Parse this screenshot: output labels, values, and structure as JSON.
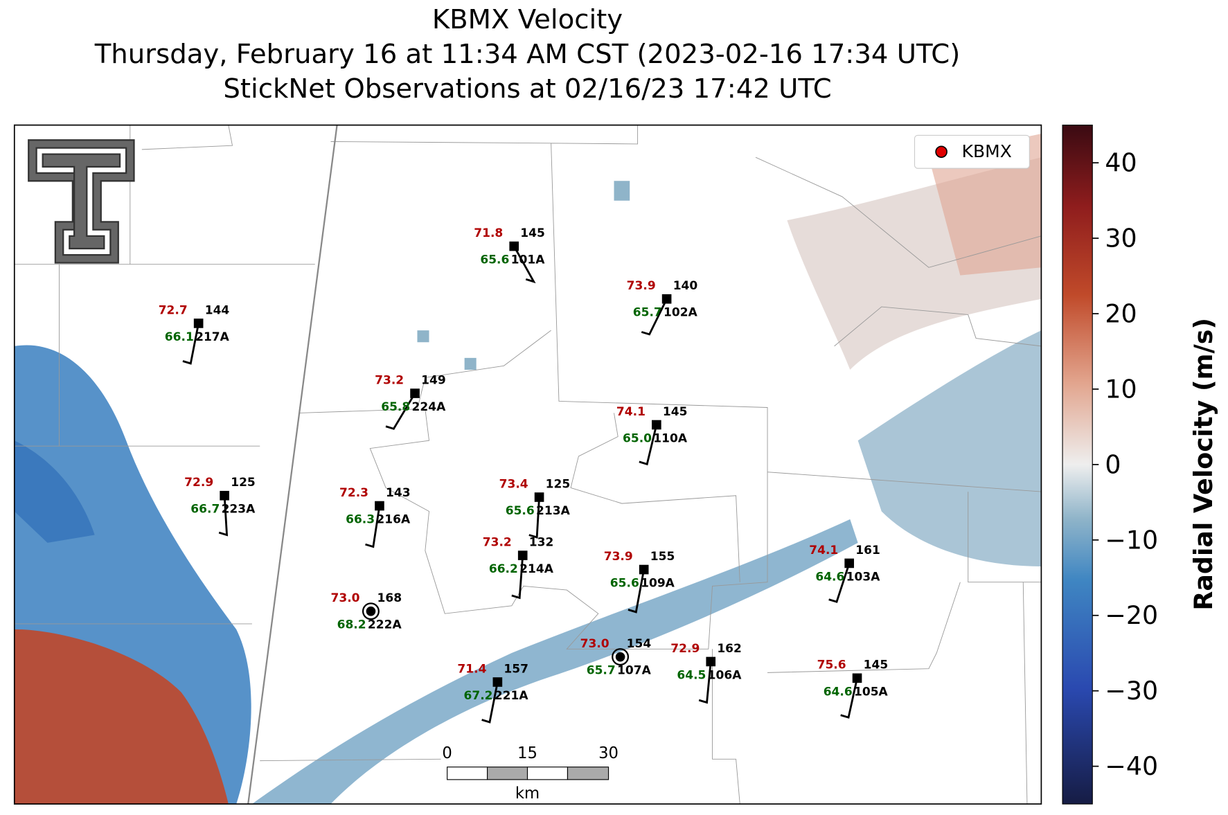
{
  "header": {
    "title": "KBMX Velocity",
    "subtitle": "Thursday, February 16 at 11:34 AM CST (2023-02-16 17:34 UTC)",
    "observations": "StickNet Observations at 02/16/23 17:42 UTC"
  },
  "legend": {
    "label": "KBMX",
    "color": "#e00000"
  },
  "scale_bar": {
    "ticks": [
      "0",
      "15",
      "30"
    ],
    "unit": "km"
  },
  "colorbar": {
    "label": "Radial Velocity (m/s)",
    "lim": [
      -45,
      45
    ],
    "ticks": [
      {
        "value": -40,
        "label": "−40"
      },
      {
        "value": -30,
        "label": "−30"
      },
      {
        "value": -20,
        "label": "−20"
      },
      {
        "value": -10,
        "label": "−10"
      },
      0,
      10,
      20,
      30,
      40
    ]
  },
  "stations": [
    {
      "id": "101A",
      "temperature": "71.8",
      "dewpoint": "65.6",
      "value": "145"
    },
    {
      "id": "102A",
      "temperature": "73.9",
      "dewpoint": "65.7",
      "value": "140"
    },
    {
      "id": "217A",
      "temperature": "72.7",
      "dewpoint": "66.1",
      "value": "144"
    },
    {
      "id": "224A",
      "temperature": "73.2",
      "dewpoint": "65.8",
      "value": "149"
    },
    {
      "id": "110A",
      "temperature": "74.1",
      "dewpoint": "65.0",
      "value": "145"
    },
    {
      "id": "223A",
      "temperature": "72.9",
      "dewpoint": "66.7",
      "value": "125"
    },
    {
      "id": "216A",
      "temperature": "72.3",
      "dewpoint": "66.3",
      "value": "143"
    },
    {
      "id": "213A",
      "temperature": "73.4",
      "dewpoint": "65.6",
      "value": "125"
    },
    {
      "id": "214A",
      "temperature": "73.2",
      "dewpoint": "66.2",
      "value": "132"
    },
    {
      "id": "109A",
      "temperature": "73.9",
      "dewpoint": "65.6",
      "value": "155"
    },
    {
      "id": "103A",
      "temperature": "74.1",
      "dewpoint": "64.6",
      "value": "161"
    },
    {
      "id": "222A",
      "temperature": "73.0",
      "dewpoint": "68.2",
      "value": "168"
    },
    {
      "id": "107A",
      "temperature": "73.0",
      "dewpoint": "65.7",
      "value": "154"
    },
    {
      "id": "106A",
      "temperature": "72.9",
      "dewpoint": "64.5",
      "value": "162"
    },
    {
      "id": "221A",
      "temperature": "71.4",
      "dewpoint": "67.2",
      "value": "157"
    },
    {
      "id": "105A",
      "temperature": "75.6",
      "dewpoint": "64.6",
      "value": "145"
    }
  ]
}
